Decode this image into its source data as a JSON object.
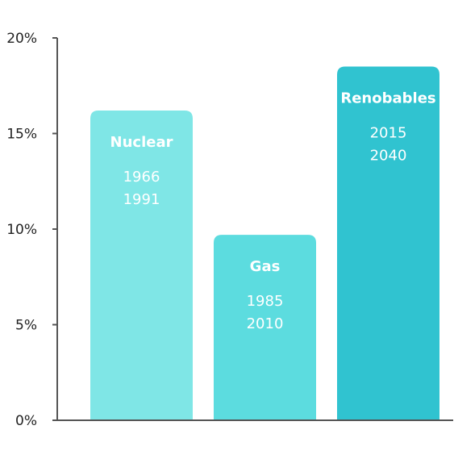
{
  "chart_data": {
    "type": "bar",
    "categories": [
      "Nuclear",
      "Gas",
      "Renobables"
    ],
    "values": [
      16.2,
      9.7,
      18.5
    ],
    "year_labels": [
      [
        "1966",
        "1991"
      ],
      [
        "1985",
        "2010"
      ],
      [
        "2015",
        "2040"
      ]
    ],
    "colors": [
      "#7fe6e6",
      "#5cdcdf",
      "#30c3d0"
    ],
    "y_ticks": [
      "0%",
      "5%",
      "10%",
      "15%",
      "20%"
    ],
    "ylim": [
      0,
      20
    ],
    "title": "",
    "xlabel": "",
    "ylabel": "",
    "grid": false,
    "legend": "none"
  }
}
